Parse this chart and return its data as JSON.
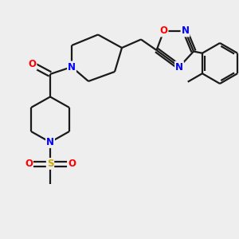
{
  "bg_color": "#eeeeee",
  "bond_color": "#1a1a1a",
  "N_color": "#0000ff",
  "O_color": "#ff0000",
  "S_color": "#ccaa00",
  "lw": 1.6,
  "fontsize": 8.5,
  "xlim": [
    0,
    10
  ],
  "ylim": [
    0,
    10
  ]
}
